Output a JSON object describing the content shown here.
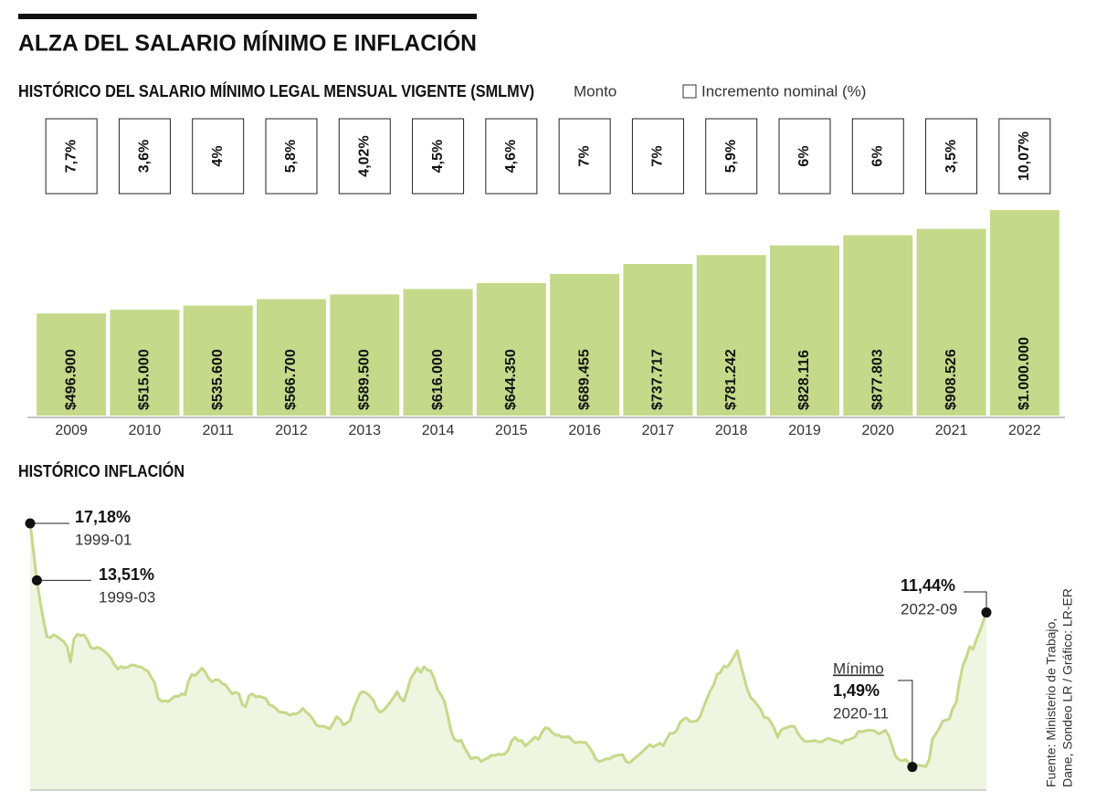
{
  "title": "ALZA DEL SALARIO MÍNIMO E INFLACIÓN",
  "source": [
    "Fuente: Ministerio de Trabajo,",
    "Dane, Sondeo LR / Gráfico: LR-ER"
  ],
  "chart_data": [
    {
      "type": "bar",
      "title": "HISTÓRICO DEL SALARIO MÍNIMO LEGAL MENSUAL VIGENTE (SMLMV)",
      "categories": [
        "2009",
        "2010",
        "2011",
        "2012",
        "2013",
        "2014",
        "2015",
        "2016",
        "2017",
        "2018",
        "2019",
        "2020",
        "2021",
        "2022"
      ],
      "series": [
        {
          "name": "Monto",
          "color": "#c5d98a",
          "values": [
            496900,
            515000,
            535600,
            566700,
            589500,
            616000,
            644350,
            689455,
            737717,
            781242,
            828116,
            877803,
            908526,
            1000000
          ],
          "value_labels": [
            "$496.900",
            "$515.000",
            "$535.600",
            "$566.700",
            "$589.500",
            "$616.000",
            "$644.350",
            "$689.455",
            "$737.717",
            "$781.242",
            "$828.116",
            "$877.803",
            "$908.526",
            "$1.000.000"
          ]
        },
        {
          "name": "Incremento nominal (%)",
          "color": "#ffffff",
          "values": [
            7.7,
            3.6,
            4,
            5.8,
            4.02,
            4.5,
            4.6,
            7,
            7,
            5.9,
            6,
            6,
            3.5,
            10.07
          ],
          "value_labels": [
            "7,7%",
            "3,6%",
            "4%",
            "5,8%",
            "4,02%",
            "4,5%",
            "4,6%",
            "7%",
            "7%",
            "5,9%",
            "6%",
            "6%",
            "3,5%",
            "10,07%"
          ]
        }
      ]
    },
    {
      "type": "line",
      "title": "HISTÓRICO INFLACIÓN",
      "color": "#c5d98a",
      "fill": "#eef5e0",
      "x": [
        "1999-01",
        "1999-02",
        "1999-03",
        "1999-04",
        "1999-05",
        "1999-06",
        "1999-07",
        "1999-08",
        "1999-09",
        "1999-10",
        "1999-11",
        "1999-12",
        "2000-01",
        "2000-02",
        "2000-03",
        "2000-04",
        "2000-05",
        "2000-06",
        "2000-07",
        "2000-08",
        "2000-09",
        "2000-10",
        "2000-11",
        "2000-12",
        "2001-01",
        "2001-02",
        "2001-03",
        "2001-04",
        "2001-05",
        "2001-06",
        "2001-07",
        "2001-08",
        "2001-09",
        "2001-10",
        "2001-11",
        "2001-12",
        "2002-01",
        "2002-02",
        "2002-03",
        "2002-04",
        "2002-05",
        "2002-06",
        "2002-07",
        "2002-08",
        "2002-09",
        "2002-10",
        "2002-11",
        "2002-12",
        "2003-01",
        "2003-02",
        "2003-03",
        "2003-04",
        "2003-05",
        "2003-06",
        "2003-07",
        "2003-08",
        "2003-09",
        "2003-10",
        "2003-11",
        "2003-12",
        "2004-01",
        "2004-02",
        "2004-03",
        "2004-04",
        "2004-05",
        "2004-06",
        "2004-07",
        "2004-08",
        "2004-09",
        "2004-10",
        "2004-11",
        "2004-12",
        "2005-01",
        "2005-02",
        "2005-03",
        "2005-04",
        "2005-05",
        "2005-06",
        "2005-07",
        "2005-08",
        "2005-09",
        "2005-10",
        "2005-11",
        "2005-12",
        "2006-01",
        "2006-02",
        "2006-03",
        "2006-04",
        "2006-05",
        "2006-06",
        "2006-07",
        "2006-08",
        "2006-09",
        "2006-10",
        "2006-11",
        "2006-12",
        "2007-01",
        "2007-02",
        "2007-03",
        "2007-04",
        "2007-05",
        "2007-06",
        "2007-07",
        "2007-08",
        "2007-09",
        "2007-10",
        "2007-11",
        "2007-12",
        "2008-01",
        "2008-02",
        "2008-03",
        "2008-04",
        "2008-05",
        "2008-06",
        "2008-07",
        "2008-08",
        "2008-09",
        "2008-10",
        "2008-11",
        "2008-12",
        "2009-01",
        "2009-02",
        "2009-03",
        "2009-04",
        "2009-05",
        "2009-06",
        "2009-07",
        "2009-08",
        "2009-09",
        "2009-10",
        "2009-11",
        "2009-12",
        "2010-01",
        "2010-02",
        "2010-03",
        "2010-04",
        "2010-05",
        "2010-06",
        "2010-07",
        "2010-08",
        "2010-09",
        "2010-10",
        "2010-11",
        "2010-12",
        "2011-01",
        "2011-02",
        "2011-03",
        "2011-04",
        "2011-05",
        "2011-06",
        "2011-07",
        "2011-08",
        "2011-09",
        "2011-10",
        "2011-11",
        "2011-12",
        "2012-01",
        "2012-02",
        "2012-03",
        "2012-04",
        "2012-05",
        "2012-06",
        "2012-07",
        "2012-08",
        "2012-09",
        "2012-10",
        "2012-11",
        "2012-12",
        "2013-01",
        "2013-02",
        "2013-03",
        "2013-04",
        "2013-05",
        "2013-06",
        "2013-07",
        "2013-08",
        "2013-09",
        "2013-10",
        "2013-11",
        "2013-12",
        "2014-01",
        "2014-02",
        "2014-03",
        "2014-04",
        "2014-05",
        "2014-06",
        "2014-07",
        "2014-08",
        "2014-09",
        "2014-10",
        "2014-11",
        "2014-12",
        "2015-01",
        "2015-02",
        "2015-03",
        "2015-04",
        "2015-05",
        "2015-06",
        "2015-07",
        "2015-08",
        "2015-09",
        "2015-10",
        "2015-11",
        "2015-12",
        "2016-01",
        "2016-02",
        "2016-03",
        "2016-04",
        "2016-05",
        "2016-06",
        "2016-07",
        "2016-08",
        "2016-09",
        "2016-10",
        "2016-11",
        "2016-12",
        "2017-01",
        "2017-02",
        "2017-03",
        "2017-04",
        "2017-05",
        "2017-06",
        "2017-07",
        "2017-08",
        "2017-09",
        "2017-10",
        "2017-11",
        "2017-12",
        "2018-01",
        "2018-02",
        "2018-03",
        "2018-04",
        "2018-05",
        "2018-06",
        "2018-07",
        "2018-08",
        "2018-09",
        "2018-10",
        "2018-11",
        "2018-12",
        "2019-01",
        "2019-02",
        "2019-03",
        "2019-04",
        "2019-05",
        "2019-06",
        "2019-07",
        "2019-08",
        "2019-09",
        "2019-10",
        "2019-11",
        "2019-12",
        "2020-01",
        "2020-02",
        "2020-03",
        "2020-04",
        "2020-05",
        "2020-06",
        "2020-07",
        "2020-08",
        "2020-09",
        "2020-10",
        "2020-11",
        "2020-12",
        "2021-01",
        "2021-02",
        "2021-03",
        "2021-04",
        "2021-05",
        "2021-06",
        "2021-07",
        "2021-08",
        "2021-09",
        "2021-10",
        "2021-11",
        "2021-12",
        "2022-01",
        "2022-02",
        "2022-03",
        "2022-04",
        "2022-05",
        "2022-06",
        "2022-07",
        "2022-08",
        "2022-09"
      ],
      "values": [
        17.18,
        15.37,
        13.51,
        12.07,
        10.94,
        9.88,
        9.82,
        10.0,
        9.89,
        9.72,
        9.56,
        9.23,
        8.25,
        9.73,
        10.03,
        9.96,
        10.0,
        9.68,
        9.17,
        9.1,
        9.2,
        9.11,
        8.95,
        8.75,
        8.49,
        8.09,
        7.81,
        7.96,
        7.87,
        7.93,
        8.06,
        8.04,
        7.95,
        7.92,
        7.78,
        7.65,
        7.26,
        6.9,
        5.92,
        5.73,
        5.74,
        5.71,
        5.87,
        6.05,
        6.03,
        6.2,
        6.13,
        6.99,
        7.45,
        7.37,
        7.6,
        7.85,
        7.6,
        7.21,
        6.98,
        7.11,
        7.11,
        6.86,
        6.79,
        6.49,
        6.2,
        6.3,
        6.21,
        5.5,
        5.37,
        6.07,
        6.2,
        6.0,
        6.04,
        5.97,
        5.9,
        5.5,
        5.43,
        5.25,
        5.03,
        5.0,
        4.98,
        4.83,
        4.91,
        4.9,
        5.02,
        5.27,
        5.01,
        4.85,
        4.56,
        4.19,
        4.11,
        4.12,
        4.04,
        3.94,
        4.32,
        4.72,
        4.58,
        4.19,
        4.31,
        4.48,
        5.21,
        5.74,
        6.26,
        6.33,
        6.23,
        6.03,
        5.77,
        5.22,
        5.01,
        5.16,
        5.41,
        5.69,
        6.0,
        6.35,
        5.93,
        5.73,
        6.39,
        7.18,
        7.52,
        7.87,
        7.57,
        7.94,
        7.73,
        7.67,
        7.18,
        6.47,
        6.14,
        5.73,
        4.84,
        3.81,
        3.28,
        3.13,
        3.21,
        2.72,
        2.37,
        2.0,
        2.1,
        2.09,
        1.84,
        1.98,
        2.07,
        2.25,
        2.24,
        2.31,
        2.28,
        2.33,
        2.59,
        3.17,
        3.4,
        3.17,
        3.19,
        2.84,
        3.02,
        3.23,
        3.42,
        3.27,
        3.73,
        4.02,
        3.96,
        3.73,
        3.54,
        3.55,
        3.4,
        3.43,
        3.44,
        3.2,
        3.03,
        3.11,
        3.08,
        3.06,
        2.77,
        2.44,
        2.0,
        1.83,
        1.91,
        2.02,
        2.0,
        2.16,
        2.22,
        2.27,
        2.27,
        1.84,
        1.76,
        1.94,
        2.13,
        2.32,
        2.51,
        2.72,
        2.93,
        2.79,
        2.89,
        3.02,
        2.86,
        3.29,
        3.65,
        3.66,
        3.82,
        4.36,
        4.56,
        4.64,
        4.41,
        4.42,
        4.46,
        4.74,
        5.35,
        5.89,
        6.39,
        6.77,
        7.45,
        7.59,
        7.98,
        7.93,
        8.2,
        8.6,
        8.97,
        8.1,
        7.27,
        6.48,
        5.96,
        5.75,
        5.47,
        5.18,
        4.69,
        4.66,
        4.37,
        3.99,
        3.4,
        3.87,
        3.97,
        4.05,
        4.12,
        4.09,
        3.68,
        3.37,
        3.14,
        3.13,
        3.16,
        3.2,
        3.12,
        3.1,
        3.23,
        3.33,
        3.27,
        3.18,
        3.15,
        3.01,
        3.21,
        3.25,
        3.31,
        3.43,
        3.79,
        3.75,
        3.82,
        3.86,
        3.84,
        3.8,
        3.62,
        3.72,
        3.86,
        3.51,
        2.85,
        2.19,
        1.97,
        1.88,
        1.97,
        1.75,
        1.49,
        1.61,
        1.6,
        1.56,
        1.51,
        1.95,
        3.3,
        3.63,
        3.97,
        4.44,
        4.51,
        4.58,
        5.26,
        5.62,
        6.94,
        8.01,
        8.53,
        9.23,
        9.07,
        9.67,
        10.21,
        10.84,
        11.44
      ],
      "annotations": [
        {
          "x": "1999-01",
          "value": 17.18,
          "label": "17,18%"
        },
        {
          "x": "1999-03",
          "value": 13.51,
          "label": "13,51%"
        },
        {
          "title": "Mínimo",
          "x": "2020-11",
          "value": 1.49,
          "label": "1,49%"
        },
        {
          "x": "2022-09",
          "value": 11.44,
          "label": "11,44%"
        }
      ]
    }
  ]
}
